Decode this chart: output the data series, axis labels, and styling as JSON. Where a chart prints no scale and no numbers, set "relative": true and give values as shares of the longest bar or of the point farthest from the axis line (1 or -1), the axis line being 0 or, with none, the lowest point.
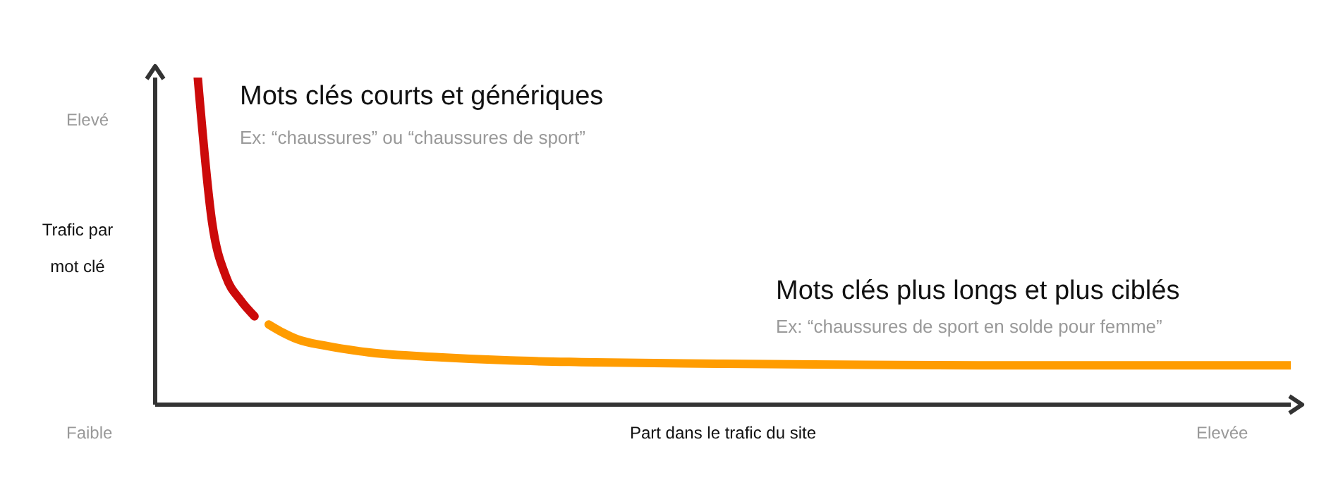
{
  "chart_data": {
    "type": "line",
    "relative": true,
    "xlabel": "Part dans le trafic du site",
    "ylabel": "Trafic par mot clé",
    "marker": "none",
    "line_style": "solid",
    "annotations": [
      "Mots clés courts et génériques",
      "Ex: “chaussures” ou “chaussures de sport”",
      "Mots clés plus longs et plus ciblés",
      "Ex: “chaussures de sport en solde pour femme”",
      "Elevé",
      "Faible",
      "Elevée"
    ],
    "categories": [
      null,
      null,
      null,
      null,
      null,
      null,
      null,
      null,
      null,
      null,
      null,
      null,
      null,
      null,
      null,
      null,
      null,
      null,
      null,
      null,
      null,
      null,
      null,
      null,
      null,
      null,
      null,
      null,
      null,
      null,
      null,
      null,
      null,
      null,
      null,
      null,
      null,
      null,
      null,
      null,
      null,
      null,
      null,
      null,
      null,
      null,
      null,
      null,
      null,
      null,
      null,
      null,
      null,
      null,
      null,
      null,
      null,
      null,
      null,
      null,
      null,
      null,
      null,
      null,
      null,
      null,
      null,
      null,
      null,
      null,
      null,
      null,
      null,
      null,
      null,
      null,
      null,
      null,
      null,
      null,
      null
    ],
    "series": [
      {
        "color": "#cc0a0a",
        "values": [
          null,
          null,
          null,
          1.0,
          0.56,
          0.39,
          0.32,
          0.27,
          null,
          null,
          null,
          null,
          null,
          null,
          null,
          null,
          null,
          null,
          null,
          null,
          null,
          null,
          null,
          null,
          null,
          null,
          null,
          null,
          null,
          null,
          null,
          null,
          null,
          null,
          null,
          null,
          null,
          null,
          null,
          null,
          null,
          null,
          null,
          null,
          null,
          null,
          null,
          null,
          null,
          null,
          null,
          null,
          null,
          null,
          null,
          null,
          null,
          null,
          null,
          null,
          null,
          null,
          null,
          null,
          null,
          null,
          null,
          null,
          null,
          null,
          null,
          null,
          null,
          null,
          null,
          null,
          null,
          null,
          null,
          null,
          null
        ]
      },
      {
        "color": "#ff9c00",
        "values": [
          null,
          null,
          null,
          null,
          null,
          null,
          null,
          null,
          0.245,
          0.22,
          0.2,
          null,
          0.18,
          null,
          null,
          0.16,
          null,
          null,
          null,
          null,
          0.145,
          null,
          null,
          null,
          null,
          0.135,
          null,
          null,
          null,
          null,
          0.13,
          null,
          null,
          null,
          null,
          null,
          null,
          null,
          null,
          null,
          0.125,
          null,
          null,
          null,
          null,
          null,
          null,
          null,
          null,
          null,
          0.122,
          null,
          null,
          null,
          null,
          null,
          null,
          null,
          null,
          null,
          0.12,
          null,
          null,
          null,
          null,
          null,
          null,
          null,
          null,
          null,
          0.12,
          null,
          null,
          null,
          null,
          null,
          null,
          null,
          null,
          null,
          0.12
        ]
      }
    ]
  }
}
